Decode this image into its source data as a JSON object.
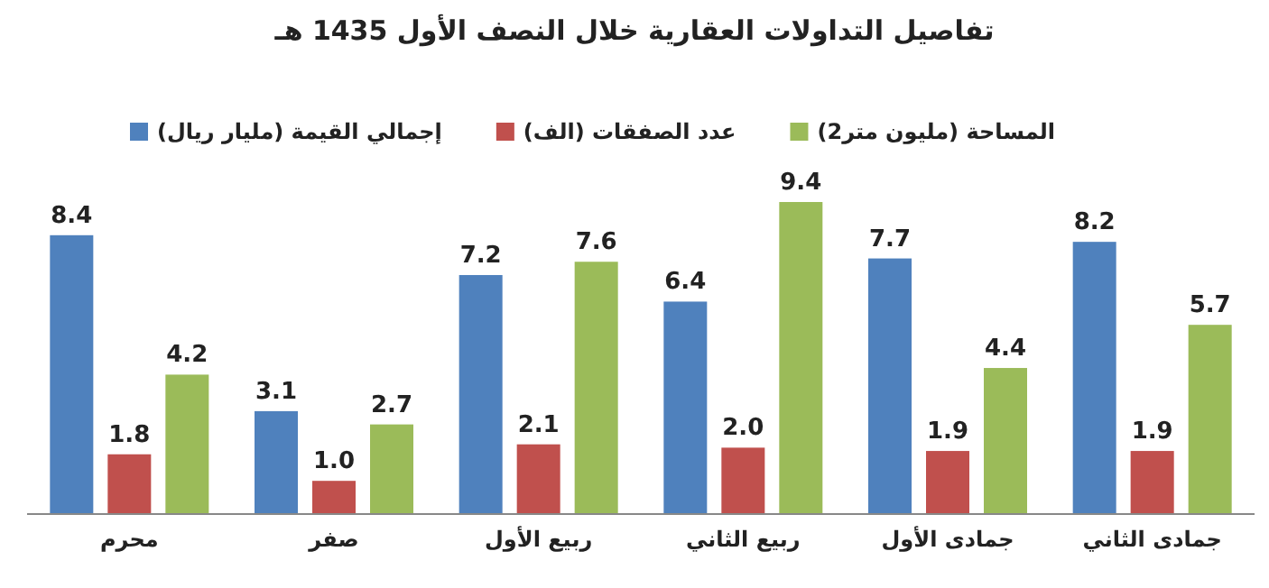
{
  "chart_data": {
    "type": "bar",
    "title": "تفاصيل التداولات العقارية خلال النصف الأول 1435 هـ",
    "categories": [
      "محرم",
      "صفر",
      "ربيع الأول",
      "ربيع الثاني",
      "جمادى الأول",
      "جمادى الثاني"
    ],
    "series": [
      {
        "name": "إجمالي القيمة (مليار ريال)",
        "color": "#4f81bd",
        "values": [
          8.4,
          3.1,
          7.2,
          6.4,
          7.7,
          8.2
        ],
        "value_labels": [
          "8.4",
          "3.1",
          "7.2",
          "6.4",
          "7.7",
          "8.2"
        ]
      },
      {
        "name": "عدد الصفقات (الف)",
        "color": "#c0504d",
        "values": [
          1.8,
          1.0,
          2.1,
          2.0,
          1.9,
          1.9
        ],
        "value_labels": [
          "1.8",
          "1.0",
          "2.1",
          "2.0",
          "1.9",
          "1.9"
        ]
      },
      {
        "name": "المساحة (مليون متر2)",
        "color": "#9bbb59",
        "values": [
          4.2,
          2.7,
          7.6,
          9.4,
          4.4,
          5.7
        ],
        "value_labels": [
          "4.2",
          "2.7",
          "7.6",
          "9.4",
          "4.4",
          "5.7"
        ]
      }
    ],
    "legend": "top",
    "grid": false
  }
}
